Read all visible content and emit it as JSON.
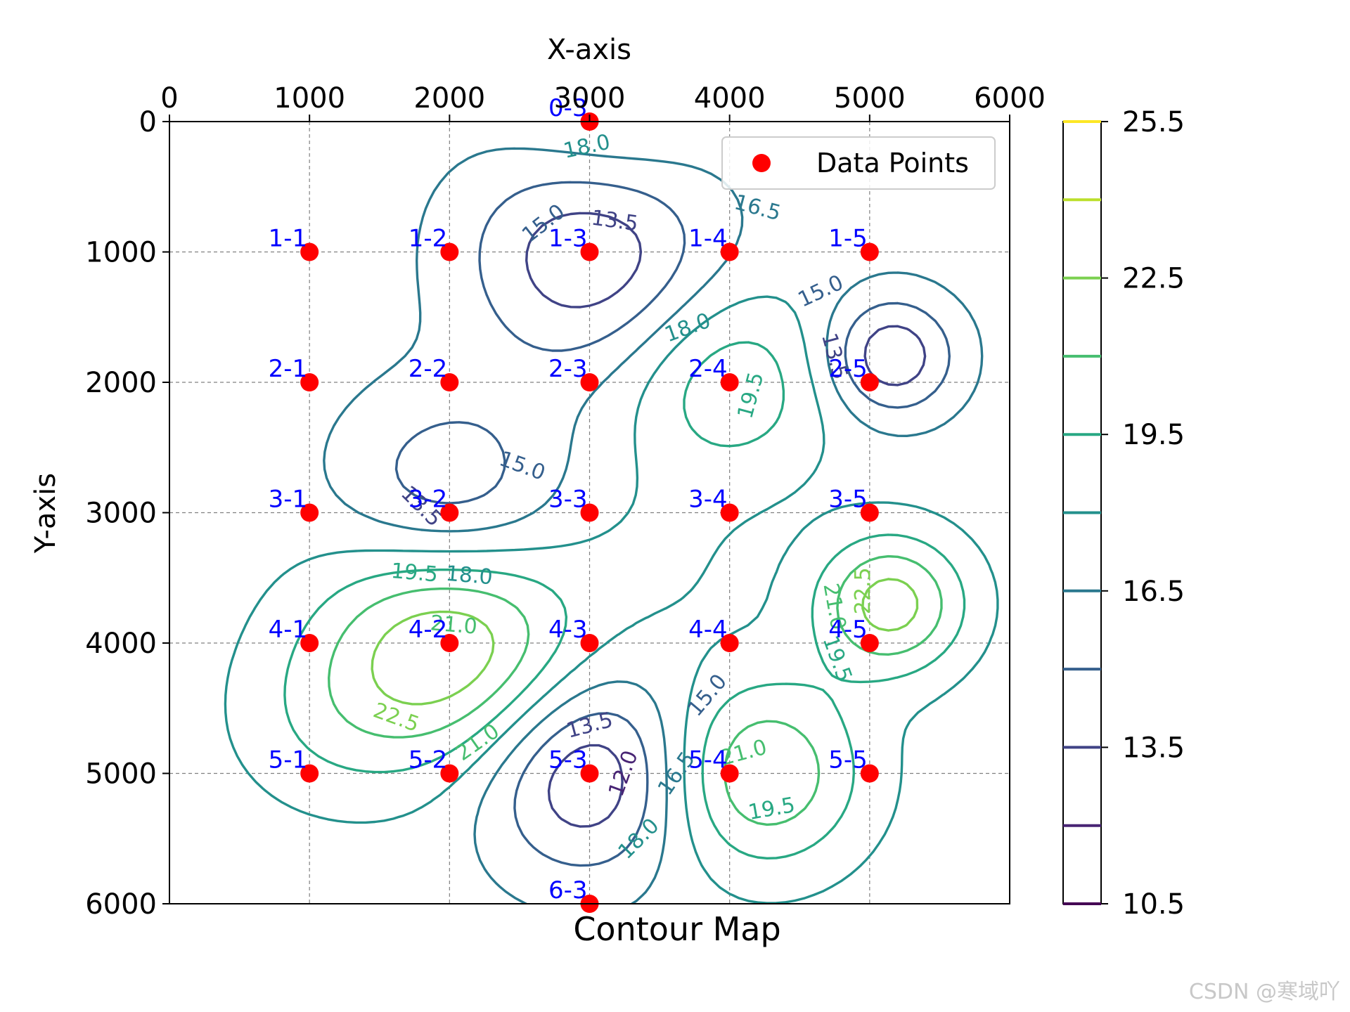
{
  "chart_data": {
    "type": "contour",
    "xlabel": "X-axis",
    "ylabel": "Y-axis",
    "caption": "Contour Map",
    "xlim": [
      0,
      6000
    ],
    "ylim": [
      6000,
      0
    ],
    "x_ticks": [
      0,
      1000,
      2000,
      3000,
      4000,
      5000,
      6000
    ],
    "y_ticks": [
      0,
      1000,
      2000,
      3000,
      4000,
      5000,
      6000
    ],
    "y_inverted": true,
    "x_axis_position": "top",
    "grid": true,
    "legend": {
      "entries": [
        "Data Points"
      ],
      "position": "top-right"
    },
    "colorbar": {
      "colormap": "viridis",
      "range": [
        10.5,
        25.5
      ],
      "tick_labels": [
        "10.5",
        "13.5",
        "16.5",
        "19.5",
        "22.5",
        "25.5"
      ],
      "levels": [
        10.5,
        12.0,
        13.5,
        15.0,
        16.5,
        18.0,
        19.5,
        21.0,
        22.5,
        24.0,
        25.5
      ]
    },
    "contour_levels_labeled": [
      "12.0",
      "13.5",
      "15.0",
      "16.5",
      "18.0",
      "19.5",
      "21.0",
      "22.5"
    ],
    "points": [
      {
        "label": "0-3",
        "x": 3000,
        "y": 0
      },
      {
        "label": "1-1",
        "x": 1000,
        "y": 1000
      },
      {
        "label": "1-2",
        "x": 2000,
        "y": 1000
      },
      {
        "label": "1-3",
        "x": 3000,
        "y": 1000
      },
      {
        "label": "1-4",
        "x": 4000,
        "y": 1000
      },
      {
        "label": "1-5",
        "x": 5000,
        "y": 1000
      },
      {
        "label": "2-1",
        "x": 1000,
        "y": 2000
      },
      {
        "label": "2-2",
        "x": 2000,
        "y": 2000
      },
      {
        "label": "2-3",
        "x": 3000,
        "y": 2000
      },
      {
        "label": "2-4",
        "x": 4000,
        "y": 2000
      },
      {
        "label": "2-5",
        "x": 5000,
        "y": 2000
      },
      {
        "label": "3-1",
        "x": 1000,
        "y": 3000
      },
      {
        "label": "3-2",
        "x": 2000,
        "y": 3000
      },
      {
        "label": "3-3",
        "x": 3000,
        "y": 3000
      },
      {
        "label": "3-4",
        "x": 4000,
        "y": 3000
      },
      {
        "label": "3-5",
        "x": 5000,
        "y": 3000
      },
      {
        "label": "4-1",
        "x": 1000,
        "y": 4000
      },
      {
        "label": "4-2",
        "x": 2000,
        "y": 4000
      },
      {
        "label": "4-3",
        "x": 3000,
        "y": 4000
      },
      {
        "label": "4-4",
        "x": 4000,
        "y": 4000
      },
      {
        "label": "4-5",
        "x": 5000,
        "y": 4000
      },
      {
        "label": "5-1",
        "x": 1000,
        "y": 5000
      },
      {
        "label": "5-2",
        "x": 2000,
        "y": 5000
      },
      {
        "label": "5-3",
        "x": 3000,
        "y": 5000
      },
      {
        "label": "5-4",
        "x": 4000,
        "y": 5000
      },
      {
        "label": "5-5",
        "x": 5000,
        "y": 5000
      },
      {
        "label": "6-3",
        "x": 3000,
        "y": 6000
      }
    ],
    "colors": {
      "points": "#ff0000",
      "point_labels": "#0000ff",
      "grid": "#808080"
    }
  },
  "watermark": "CSDN @寒域吖"
}
